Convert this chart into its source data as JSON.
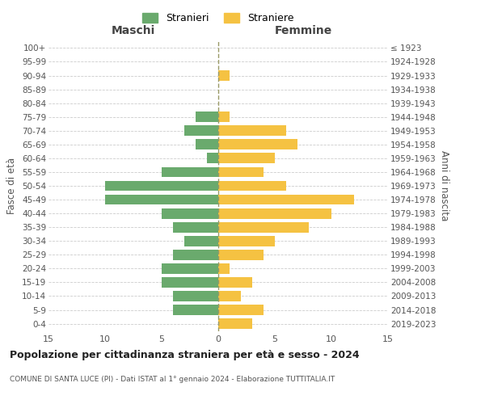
{
  "age_groups": [
    "0-4",
    "5-9",
    "10-14",
    "15-19",
    "20-24",
    "25-29",
    "30-34",
    "35-39",
    "40-44",
    "45-49",
    "50-54",
    "55-59",
    "60-64",
    "65-69",
    "70-74",
    "75-79",
    "80-84",
    "85-89",
    "90-94",
    "95-99",
    "100+"
  ],
  "birth_years": [
    "2019-2023",
    "2014-2018",
    "2009-2013",
    "2004-2008",
    "1999-2003",
    "1994-1998",
    "1989-1993",
    "1984-1988",
    "1979-1983",
    "1974-1978",
    "1969-1973",
    "1964-1968",
    "1959-1963",
    "1954-1958",
    "1949-1953",
    "1944-1948",
    "1939-1943",
    "1934-1938",
    "1929-1933",
    "1924-1928",
    "≤ 1923"
  ],
  "maschi": [
    0,
    4,
    4,
    5,
    5,
    4,
    3,
    4,
    5,
    10,
    10,
    5,
    1,
    2,
    3,
    2,
    0,
    0,
    0,
    0,
    0
  ],
  "femmine": [
    3,
    4,
    2,
    3,
    1,
    4,
    5,
    8,
    10,
    12,
    6,
    4,
    5,
    7,
    6,
    1,
    0,
    0,
    1,
    0,
    0
  ],
  "color_maschi": "#6aaa6d",
  "color_femmine": "#f5c242",
  "title": "Popolazione per cittadinanza straniera per età e sesso - 2024",
  "subtitle": "COMUNE DI SANTA LUCE (PI) - Dati ISTAT al 1° gennaio 2024 - Elaborazione TUTTITALIA.IT",
  "ylabel_left": "Fasce di età",
  "ylabel_right": "Anni di nascita",
  "xlabel_left": "Maschi",
  "xlabel_right": "Femmine",
  "legend_maschi": "Stranieri",
  "legend_femmine": "Straniere",
  "xlim": 15,
  "bg_color": "#ffffff",
  "grid_color": "#cccccc",
  "axis_label_color": "#555555"
}
